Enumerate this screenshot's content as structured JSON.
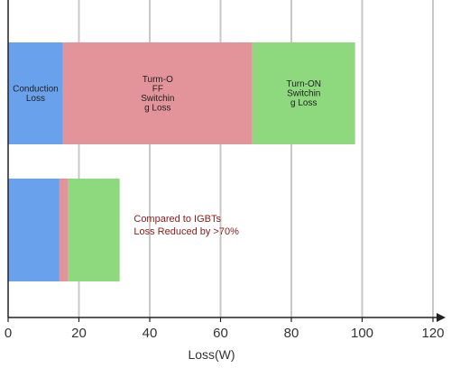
{
  "chart_data": {
    "type": "bar",
    "orientation": "horizontal",
    "stacked": true,
    "xlabel": "Loss(W)",
    "xlim": [
      0,
      120
    ],
    "xticks": [
      0,
      20,
      40,
      60,
      80,
      100,
      120
    ],
    "grid": true,
    "legend": "none",
    "categories": [
      "",
      ""
    ],
    "series": [
      {
        "color": "#6aa1ec",
        "values": [
          15.5,
          14.5
        ],
        "labels": [
          [
            "Conduction",
            "Loss"
          ],
          []
        ]
      },
      {
        "color": "#e3939a",
        "values": [
          53.5,
          2.5
        ],
        "labels": [
          [
            "Turm-O",
            "FF",
            "Switchin",
            "g Loss"
          ],
          []
        ]
      },
      {
        "color": "#8ed97e",
        "values": [
          29,
          14.5
        ],
        "labels": [
          [
            "Turn-ON",
            "Switchin",
            "g Loss"
          ],
          []
        ]
      }
    ],
    "annotation": {
      "lines": [
        "Compared to IGBTs",
        "Loss Reduced by >70%"
      ],
      "x": 35,
      "color": "#8b1a1a"
    }
  }
}
